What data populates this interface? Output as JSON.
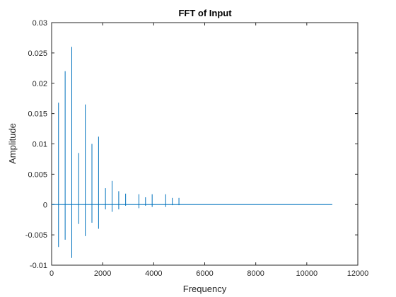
{
  "chart_data": {
    "type": "line",
    "title": "FFT of Input",
    "xlabel": "Frequency",
    "ylabel": "Amplitude",
    "xlim": [
      0,
      12000
    ],
    "ylim": [
      -0.01,
      0.03
    ],
    "xticks": [
      0,
      2000,
      4000,
      6000,
      8000,
      10000,
      12000
    ],
    "xtick_labels": [
      "0",
      "2000",
      "4000",
      "6000",
      "8000",
      "10000",
      "12000"
    ],
    "yticks": [
      -0.01,
      -0.005,
      0,
      0.005,
      0.01,
      0.015,
      0.02,
      0.025,
      0.03
    ],
    "ytick_labels": [
      "-0.01",
      "-0.005",
      "0",
      "0.005",
      "0.01",
      "0.015",
      "0.02",
      "0.025",
      "0.03"
    ],
    "grid": false,
    "line_color": "#0072BD",
    "x_end": 11000,
    "series": [
      {
        "peaks": [
          {
            "x": 270,
            "ymin": -0.007,
            "ymax": 0.0168
          },
          {
            "x": 530,
            "ymin": -0.0058,
            "ymax": 0.022
          },
          {
            "x": 790,
            "ymin": -0.0088,
            "ymax": 0.026
          },
          {
            "x": 1060,
            "ymin": -0.0032,
            "ymax": 0.0085
          },
          {
            "x": 1320,
            "ymin": -0.0052,
            "ymax": 0.0165
          },
          {
            "x": 1580,
            "ymin": -0.003,
            "ymax": 0.01
          },
          {
            "x": 1840,
            "ymin": -0.004,
            "ymax": 0.0112
          },
          {
            "x": 2110,
            "ymin": -0.0008,
            "ymax": 0.0027
          },
          {
            "x": 2370,
            "ymin": -0.0012,
            "ymax": 0.0039
          },
          {
            "x": 2630,
            "ymin": -0.0008,
            "ymax": 0.0022
          },
          {
            "x": 2900,
            "ymin": -0.0002,
            "ymax": 0.0018
          },
          {
            "x": 3420,
            "ymin": -0.0006,
            "ymax": 0.0017
          },
          {
            "x": 3680,
            "ymin": -0.0002,
            "ymax": 0.0012
          },
          {
            "x": 3940,
            "ymin": -0.0004,
            "ymax": 0.0017
          },
          {
            "x": 4470,
            "ymin": -0.0004,
            "ymax": 0.0017
          },
          {
            "x": 4730,
            "ymin": -0.0001,
            "ymax": 0.0011
          },
          {
            "x": 4990,
            "ymin": -0.0001,
            "ymax": 0.0011
          }
        ]
      }
    ]
  }
}
